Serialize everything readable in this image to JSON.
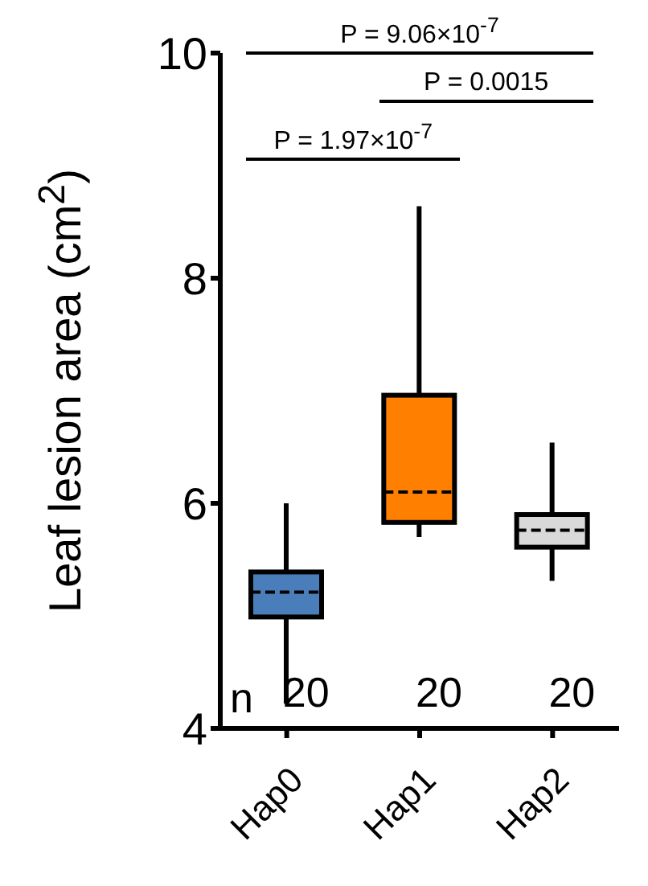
{
  "chart_data": {
    "type": "box",
    "ylabel": "Leaf lesion area (cm$^{2}$)",
    "categories": [
      "Hap0",
      "Hap1",
      "Hap2"
    ],
    "colors": [
      "#4a7ebb",
      "#ff7f00",
      "#d9d9d9"
    ],
    "boxes": [
      {
        "low": 4.22,
        "q1": 4.99,
        "median": 5.21,
        "q3": 5.39,
        "high": 6.0
      },
      {
        "low": 5.7,
        "q1": 5.83,
        "median": 6.1,
        "q3": 6.96,
        "high": 8.64
      },
      {
        "low": 5.31,
        "q1": 5.61,
        "median": 5.76,
        "q3": 5.9,
        "high": 6.54
      }
    ],
    "ylim": [
      4,
      10
    ],
    "yticks": [
      4,
      6,
      8,
      10
    ],
    "annotations": [
      "P = 9.06×10$^{-7}$",
      "P = 0.0015",
      "P = 1.97×10$^{-7}$",
      "n",
      "20",
      "20",
      "20"
    ]
  }
}
